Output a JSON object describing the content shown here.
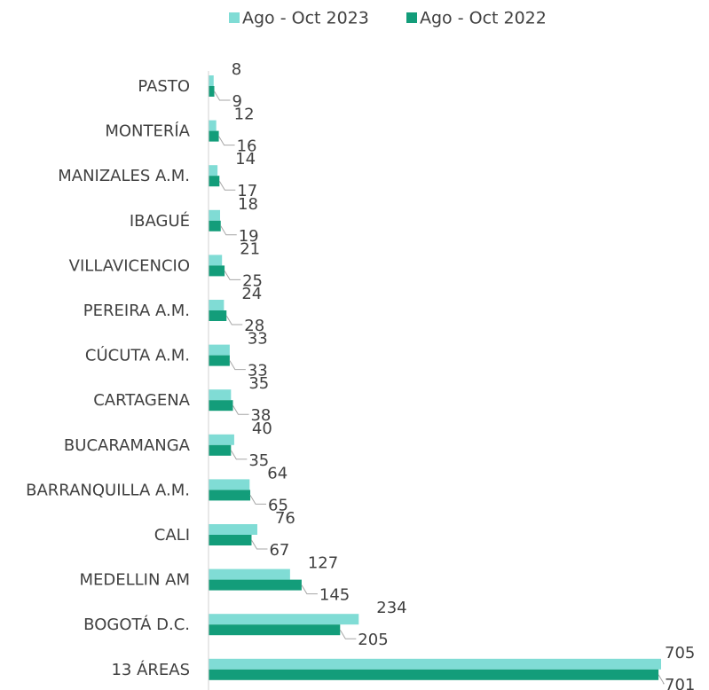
{
  "chart_data": {
    "type": "hbar",
    "categories": [
      "PASTO",
      "MONTERÍA",
      "MANIZALES A.M.",
      "IBAGUÉ",
      "VILLAVICENCIO",
      "PEREIRA A.M.",
      "CÚCUTA A.M.",
      "CARTAGENA",
      "BUCARAMANGA",
      "BARRANQUILLA A.M.",
      "CALI",
      "MEDELLIN AM",
      "BOGOTÁ D.C.",
      "13 ÁREAS"
    ],
    "series": [
      {
        "name": "Ago - Oct 2023",
        "color": "#80dcd5",
        "values": [
          8,
          12,
          14,
          18,
          21,
          24,
          33,
          35,
          40,
          64,
          76,
          127,
          234,
          705
        ]
      },
      {
        "name": "Ago - Oct 2022",
        "color": "#139d7a",
        "values": [
          9,
          16,
          17,
          19,
          25,
          28,
          33,
          38,
          35,
          65,
          67,
          145,
          205,
          701
        ]
      }
    ],
    "legend": "top"
  }
}
